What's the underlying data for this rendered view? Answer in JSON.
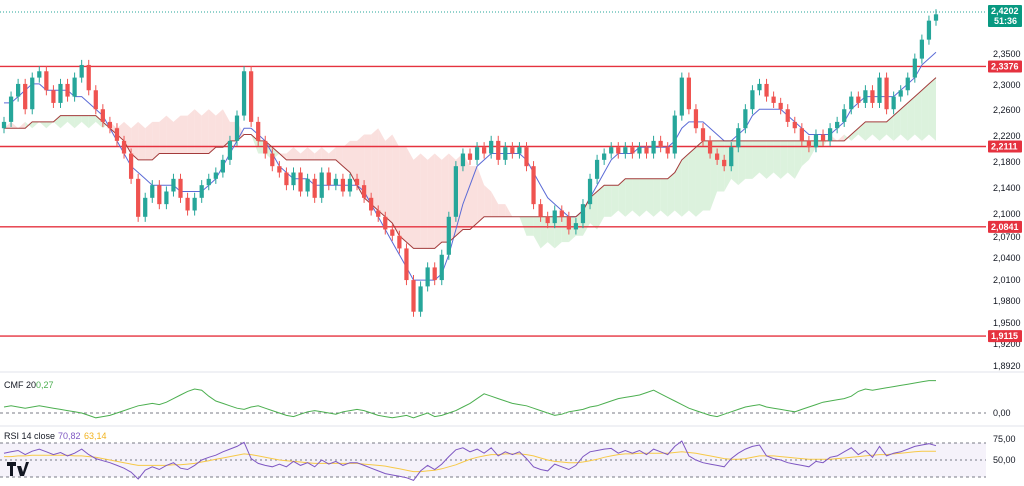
{
  "colors": {
    "up": "#26a69a",
    "down": "#ef5350",
    "level": "#e5323f",
    "tenkan": "#5b6bd6",
    "kijun": "#a33b3b",
    "cloud_bull": "#cdeccf",
    "cloud_bear": "#f8d3d0",
    "cmf": "#4caf50",
    "rsi": "#7e57c2",
    "rsi_ma": "#f7c948",
    "price_tag": "#089981"
  },
  "price": {
    "last": "2,4202",
    "countdown": "51:36"
  },
  "price_axis": {
    "ticks": [
      "2,3500",
      "2,3000",
      "2,2600",
      "2,2200",
      "2,1800",
      "2,1400",
      "2,1000",
      "2,0700",
      "2,0400",
      "2,0100",
      "1,9800",
      "1,9500",
      "1,9200",
      "1,8920"
    ]
  },
  "levels": [
    {
      "label": "2,3376",
      "value": 2.3376
    },
    {
      "label": "2,2111",
      "value": 2.2111
    },
    {
      "label": "2,0841",
      "value": 2.0841
    },
    {
      "label": "1,9115",
      "value": 1.9115
    }
  ],
  "cmf": {
    "title": "CMF 20",
    "value": "0,27",
    "zero_label": "0,00"
  },
  "rsi": {
    "title": "RSI 14 close",
    "value": "70,82",
    "ma_value": "63,14",
    "tick_high": "75,00",
    "tick_mid": "50,00"
  },
  "chart_data": {
    "type": "candlestick",
    "y_range": [
      1.88,
      2.43
    ],
    "closes": [
      2.25,
      2.29,
      2.31,
      2.27,
      2.32,
      2.33,
      2.3,
      2.28,
      2.31,
      2.29,
      2.32,
      2.34,
      2.3,
      2.27,
      2.25,
      2.24,
      2.22,
      2.2,
      2.16,
      2.1,
      2.13,
      2.15,
      2.12,
      2.14,
      2.16,
      2.13,
      2.11,
      2.13,
      2.15,
      2.16,
      2.17,
      2.19,
      2.22,
      2.26,
      2.33,
      2.25,
      2.22,
      2.2,
      2.18,
      2.17,
      2.15,
      2.17,
      2.14,
      2.16,
      2.13,
      2.17,
      2.15,
      2.16,
      2.14,
      2.16,
      2.15,
      2.13,
      2.11,
      2.1,
      2.08,
      2.07,
      2.05,
      2.0,
      1.95,
      1.99,
      2.02,
      2.0,
      2.04,
      2.1,
      2.18,
      2.2,
      2.19,
      2.21,
      2.2,
      2.22,
      2.19,
      2.21,
      2.2,
      2.21,
      2.18,
      2.12,
      2.1,
      2.09,
      2.11,
      2.1,
      2.08,
      2.09,
      2.12,
      2.16,
      2.19,
      2.2,
      2.21,
      2.2,
      2.21,
      2.2,
      2.21,
      2.2,
      2.22,
      2.21,
      2.2,
      2.26,
      2.32,
      2.27,
      2.24,
      2.22,
      2.2,
      2.19,
      2.18,
      2.21,
      2.24,
      2.27,
      2.3,
      2.31,
      2.29,
      2.28,
      2.27,
      2.25,
      2.24,
      2.22,
      2.21,
      2.23,
      2.22,
      2.24,
      2.25,
      2.27,
      2.29,
      2.28,
      2.3,
      2.28,
      2.32,
      2.27,
      2.29,
      2.3,
      2.32,
      2.35,
      2.38,
      2.41,
      2.42
    ],
    "tenkan": [
      2.28,
      2.28,
      2.29,
      2.3,
      2.31,
      2.31,
      2.3,
      2.3,
      2.3,
      2.3,
      2.29,
      2.29,
      2.28,
      2.27,
      2.26,
      2.24,
      2.22,
      2.2,
      2.18,
      2.17,
      2.16,
      2.15,
      2.15,
      2.15,
      2.15,
      2.14,
      2.14,
      2.14,
      2.14,
      2.15,
      2.16,
      2.18,
      2.2,
      2.22,
      2.24,
      2.24,
      2.23,
      2.22,
      2.2,
      2.18,
      2.17,
      2.16,
      2.16,
      2.16,
      2.15,
      2.15,
      2.15,
      2.15,
      2.15,
      2.15,
      2.15,
      2.14,
      2.12,
      2.1,
      2.08,
      2.06,
      2.04,
      2.02,
      2.0,
      2.0,
      2.0,
      2.0,
      2.01,
      2.04,
      2.08,
      2.12,
      2.15,
      2.18,
      2.19,
      2.2,
      2.2,
      2.2,
      2.2,
      2.2,
      2.19,
      2.17,
      2.15,
      2.13,
      2.12,
      2.11,
      2.1,
      2.1,
      2.11,
      2.13,
      2.15,
      2.17,
      2.19,
      2.2,
      2.2,
      2.2,
      2.21,
      2.21,
      2.21,
      2.21,
      2.21,
      2.22,
      2.24,
      2.25,
      2.25,
      2.25,
      2.24,
      2.23,
      2.22,
      2.22,
      2.23,
      2.24,
      2.26,
      2.27,
      2.27,
      2.27,
      2.27,
      2.26,
      2.25,
      2.24,
      2.23,
      2.23,
      2.23,
      2.23,
      2.24,
      2.25,
      2.27,
      2.28,
      2.29,
      2.29,
      2.29,
      2.29,
      2.29,
      2.3,
      2.31,
      2.32,
      2.34,
      2.35,
      2.36
    ],
    "kijun": [
      2.24,
      2.24,
      2.24,
      2.24,
      2.25,
      2.25,
      2.25,
      2.25,
      2.26,
      2.26,
      2.26,
      2.26,
      2.26,
      2.26,
      2.25,
      2.24,
      2.23,
      2.22,
      2.2,
      2.19,
      2.19,
      2.19,
      2.2,
      2.2,
      2.2,
      2.2,
      2.2,
      2.2,
      2.2,
      2.2,
      2.21,
      2.21,
      2.22,
      2.22,
      2.23,
      2.23,
      2.22,
      2.22,
      2.21,
      2.2,
      2.19,
      2.19,
      2.19,
      2.19,
      2.19,
      2.19,
      2.19,
      2.19,
      2.18,
      2.17,
      2.15,
      2.13,
      2.12,
      2.11,
      2.1,
      2.09,
      2.07,
      2.06,
      2.05,
      2.05,
      2.05,
      2.05,
      2.06,
      2.06,
      2.07,
      2.08,
      2.08,
      2.09,
      2.1,
      2.1,
      2.1,
      2.1,
      2.1,
      2.1,
      2.1,
      2.1,
      2.1,
      2.1,
      2.1,
      2.1,
      2.1,
      2.1,
      2.11,
      2.13,
      2.14,
      2.15,
      2.15,
      2.15,
      2.16,
      2.16,
      2.16,
      2.16,
      2.16,
      2.16,
      2.16,
      2.17,
      2.19,
      2.2,
      2.21,
      2.22,
      2.22,
      2.22,
      2.22,
      2.22,
      2.22,
      2.22,
      2.22,
      2.22,
      2.22,
      2.22,
      2.22,
      2.22,
      2.22,
      2.22,
      2.22,
      2.22,
      2.22,
      2.22,
      2.22,
      2.22,
      2.23,
      2.24,
      2.25,
      2.25,
      2.25,
      2.25,
      2.26,
      2.27,
      2.28,
      2.29,
      2.3,
      2.31,
      2.32
    ],
    "cmf": [
      0.05,
      0.06,
      0.05,
      0.04,
      0.05,
      0.06,
      0.05,
      0.04,
      0.03,
      0.02,
      0.01,
      0.0,
      -0.02,
      -0.04,
      -0.03,
      -0.02,
      0.0,
      0.02,
      0.04,
      0.06,
      0.07,
      0.08,
      0.07,
      0.09,
      0.12,
      0.15,
      0.18,
      0.2,
      0.19,
      0.14,
      0.1,
      0.08,
      0.06,
      0.04,
      0.03,
      0.05,
      0.06,
      0.04,
      0.02,
      0.0,
      -0.02,
      -0.03,
      -0.01,
      0.01,
      0.02,
      0.01,
      0.0,
      -0.01,
      0.01,
      0.02,
      0.03,
      0.02,
      0.0,
      -0.02,
      -0.03,
      -0.04,
      -0.03,
      -0.02,
      -0.04,
      -0.02,
      0.0,
      -0.03,
      -0.02,
      0.0,
      0.02,
      0.05,
      0.08,
      0.12,
      0.16,
      0.14,
      0.12,
      0.1,
      0.08,
      0.07,
      0.06,
      0.04,
      0.02,
      0.0,
      -0.02,
      -0.01,
      0.01,
      0.02,
      0.03,
      0.05,
      0.06,
      0.08,
      0.1,
      0.12,
      0.13,
      0.14,
      0.15,
      0.17,
      0.19,
      0.16,
      0.13,
      0.1,
      0.07,
      0.04,
      0.02,
      0.0,
      -0.02,
      -0.03,
      -0.01,
      0.01,
      0.03,
      0.05,
      0.06,
      0.07,
      0.05,
      0.04,
      0.03,
      0.02,
      0.01,
      0.03,
      0.05,
      0.07,
      0.09,
      0.1,
      0.11,
      0.12,
      0.14,
      0.18,
      0.2,
      0.19,
      0.2,
      0.21,
      0.22,
      0.23,
      0.24,
      0.25,
      0.26,
      0.27,
      0.27
    ],
    "rsi": [
      60,
      62,
      64,
      58,
      63,
      66,
      62,
      58,
      61,
      56,
      60,
      66,
      58,
      52,
      49,
      46,
      42,
      38,
      32,
      22,
      35,
      40,
      36,
      42,
      46,
      38,
      36,
      42,
      50,
      54,
      57,
      62,
      66,
      70,
      76,
      52,
      45,
      42,
      40,
      44,
      40,
      48,
      42,
      46,
      40,
      50,
      44,
      48,
      42,
      46,
      46,
      42,
      38,
      34,
      30,
      28,
      26,
      24,
      20,
      34,
      42,
      36,
      44,
      55,
      65,
      68,
      62,
      66,
      60,
      68,
      56,
      62,
      58,
      62,
      52,
      40,
      36,
      34,
      44,
      40,
      36,
      42,
      55,
      62,
      64,
      66,
      67,
      60,
      64,
      60,
      64,
      58,
      66,
      62,
      58,
      70,
      78,
      56,
      50,
      46,
      44,
      42,
      40,
      52,
      60,
      66,
      70,
      72,
      56,
      52,
      50,
      46,
      44,
      42,
      40,
      48,
      46,
      54,
      56,
      62,
      68,
      58,
      64,
      54,
      70,
      56,
      60,
      62,
      66,
      70,
      72,
      74,
      71
    ],
    "rsi_ma": [
      55,
      55,
      56,
      56,
      57,
      57,
      57,
      57,
      57,
      57,
      56,
      56,
      55,
      54,
      52,
      50,
      48,
      46,
      44,
      42,
      42,
      42,
      42,
      42,
      43,
      43,
      44,
      45,
      47,
      49,
      51,
      53,
      55,
      57,
      59,
      58,
      56,
      54,
      52,
      50,
      49,
      48,
      47,
      46,
      45,
      45,
      45,
      45,
      45,
      45,
      45,
      44,
      43,
      42,
      41,
      39,
      37,
      35,
      33,
      33,
      34,
      35,
      37,
      40,
      43,
      47,
      51,
      54,
      56,
      58,
      58,
      59,
      59,
      59,
      58,
      56,
      53,
      50,
      48,
      47,
      46,
      46,
      47,
      49,
      51,
      54,
      56,
      58,
      59,
      59,
      60,
      60,
      60,
      60,
      60,
      61,
      62,
      61,
      60,
      58,
      56,
      54,
      52,
      51,
      51,
      52,
      54,
      56,
      56,
      56,
      55,
      54,
      53,
      52,
      51,
      51,
      51,
      51,
      52,
      53,
      54,
      55,
      56,
      57,
      58,
      58,
      59,
      60,
      61,
      62,
      63,
      63,
      63
    ]
  }
}
